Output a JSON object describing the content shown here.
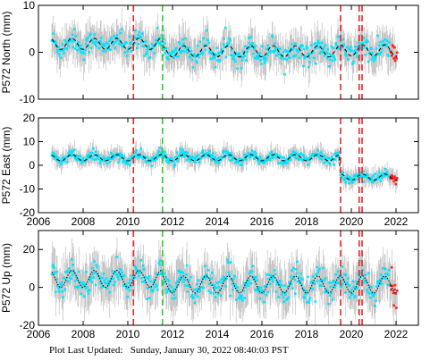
{
  "footer": {
    "label": "Plot Last Updated:",
    "value": "Sunday, January 30, 2022 08:40:03 PST"
  },
  "colors": {
    "errorbar": "#b8b8b8",
    "data": "#00e5ff",
    "recent": "#ff2020",
    "model": "#000000",
    "event_red": "#e8262a",
    "event_green": "#2ecc2e"
  },
  "chart_data": [
    {
      "type": "scatter",
      "ylabel": "P572 North (mm)",
      "xlim": [
        2006,
        2023
      ],
      "ylim": [
        -10,
        10
      ],
      "xticks": [
        2006,
        2008,
        2010,
        2012,
        2014,
        2016,
        2018,
        2020,
        2022
      ],
      "yticks": [
        -10,
        0,
        10
      ],
      "x_tick_labels_visible": false,
      "series": [
        {
          "role": "observations",
          "x_range": [
            2006.6,
            2022.05
          ],
          "baseline_segments": [
            [
              2006.6,
              2011.55,
              1.8
            ],
            [
              2011.55,
              2019.5,
              0.2
            ],
            [
              2019.5,
              2022.05,
              0.4
            ]
          ],
          "seasonal_amplitude": 1.2,
          "spread": 2.0
        }
      ],
      "events": [
        {
          "x": 2010.25,
          "color": "red"
        },
        {
          "x": 2011.55,
          "color": "green"
        },
        {
          "x": 2019.52,
          "color": "red"
        },
        {
          "x": 2020.35,
          "color": "red"
        },
        {
          "x": 2020.48,
          "color": "red"
        }
      ]
    },
    {
      "type": "scatter",
      "ylabel": "P572 East (mm)",
      "xlim": [
        2006,
        2023
      ],
      "ylim": [
        -20,
        20
      ],
      "xticks": [
        2006,
        2008,
        2010,
        2012,
        2014,
        2016,
        2018,
        2020,
        2022
      ],
      "yticks": [
        -20,
        -10,
        0,
        10,
        20
      ],
      "x_tick_labels_visible": true,
      "series": [
        {
          "role": "observations",
          "x_range": [
            2006.6,
            2022.05
          ],
          "baseline_segments": [
            [
              2006.6,
              2019.5,
              3.2
            ],
            [
              2019.5,
              2022.05,
              -5.0
            ]
          ],
          "seasonal_amplitude": 1.3,
          "spread": 2.0
        }
      ],
      "events": [
        {
          "x": 2010.25,
          "color": "red"
        },
        {
          "x": 2011.55,
          "color": "green"
        },
        {
          "x": 2019.52,
          "color": "red"
        },
        {
          "x": 2020.35,
          "color": "red"
        },
        {
          "x": 2020.48,
          "color": "red"
        }
      ]
    },
    {
      "type": "scatter",
      "ylabel": "P572 Up (mm)",
      "xlim": [
        2006,
        2023
      ],
      "ylim": [
        -20,
        30
      ],
      "xticks": [
        2006,
        2008,
        2010,
        2012,
        2014,
        2016,
        2018,
        2020,
        2022
      ],
      "yticks": [
        -20,
        0,
        20
      ],
      "x_tick_labels_visible": true,
      "series": [
        {
          "role": "observations",
          "x_range": [
            2006.6,
            2022.05
          ],
          "baseline_segments": [
            [
              2006.6,
              2011.55,
              4.5
            ],
            [
              2011.55,
              2022.05,
              1.5
            ]
          ],
          "seasonal_amplitude": 4.5,
          "spread": 6.0
        }
      ],
      "events": [
        {
          "x": 2010.25,
          "color": "red"
        },
        {
          "x": 2011.55,
          "color": "green"
        },
        {
          "x": 2019.52,
          "color": "red"
        },
        {
          "x": 2020.35,
          "color": "red"
        },
        {
          "x": 2020.48,
          "color": "red"
        }
      ]
    }
  ]
}
